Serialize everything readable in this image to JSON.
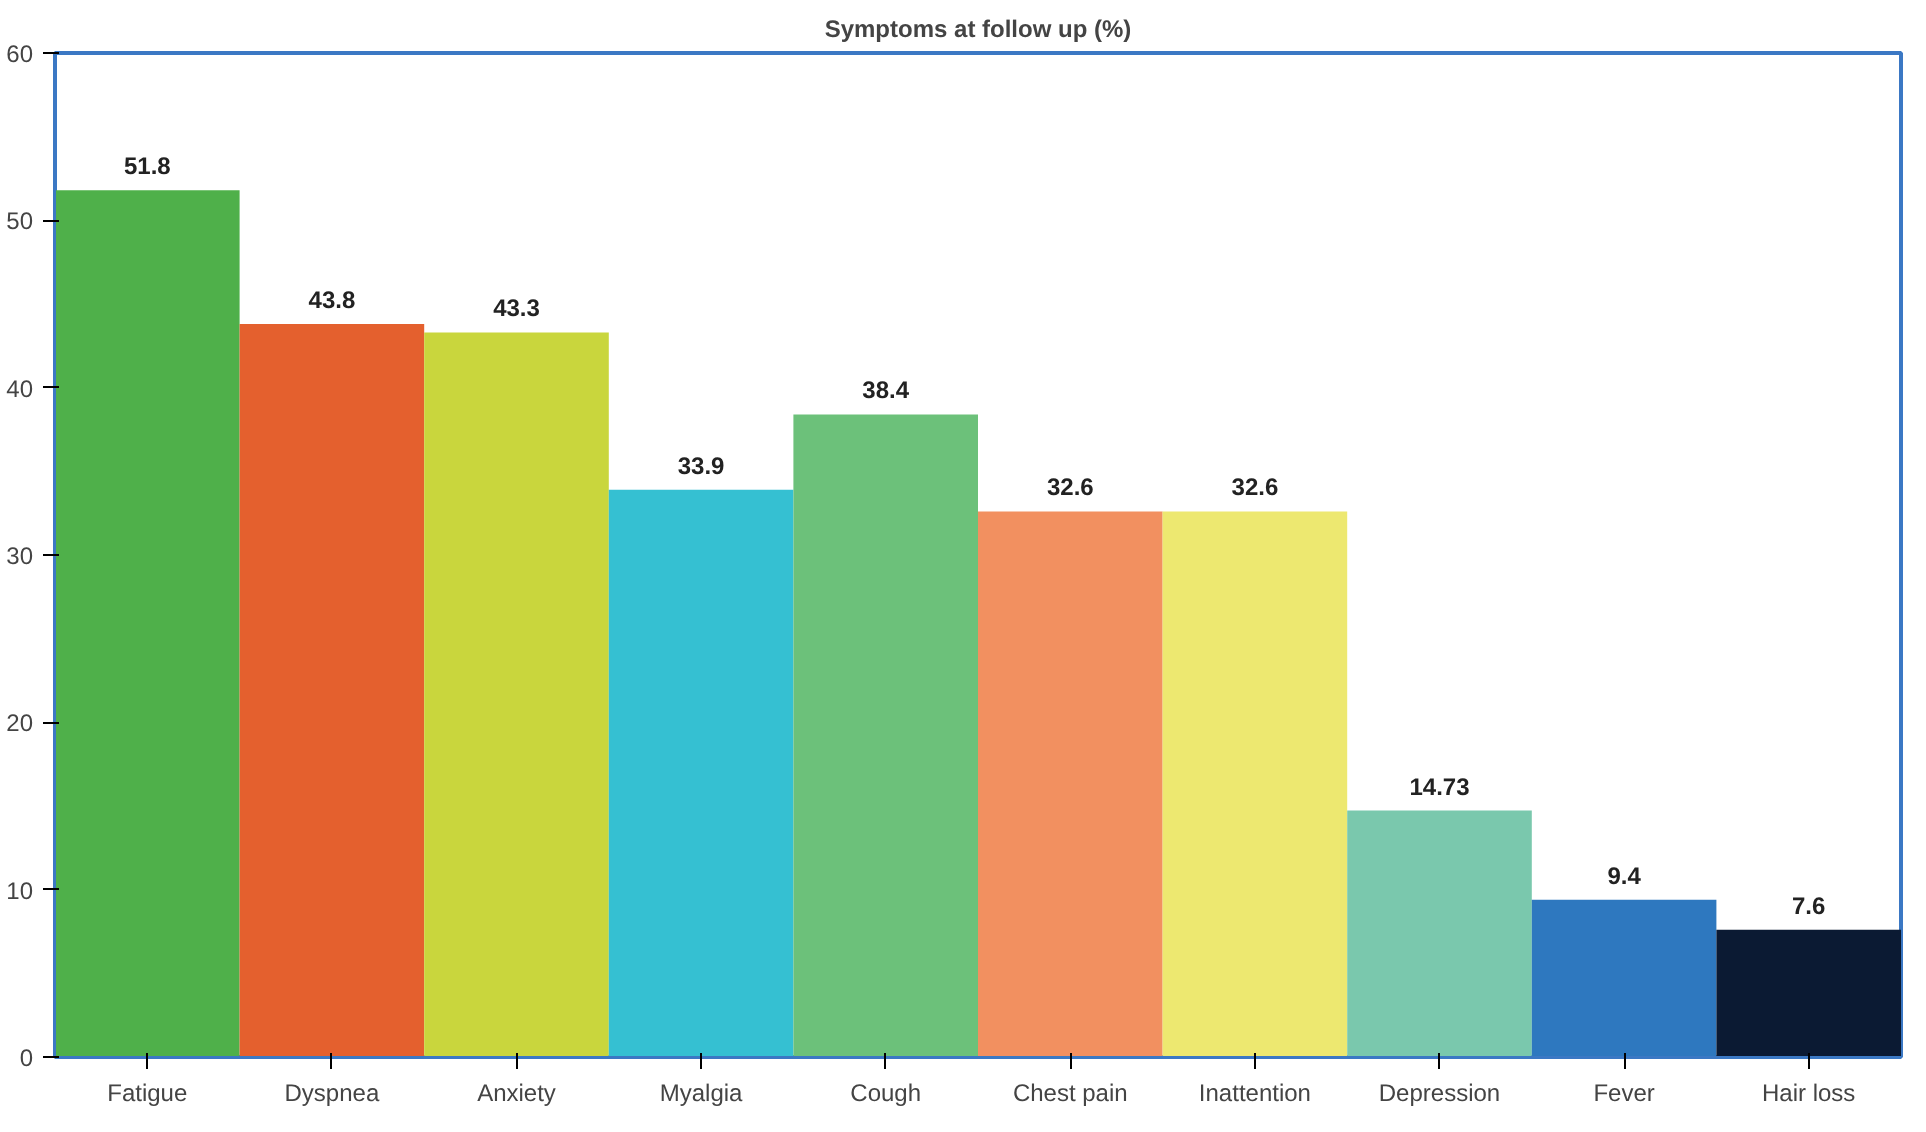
{
  "chart_data": {
    "type": "bar",
    "title": "Symptoms at follow up (%)",
    "categories": [
      "Fatigue",
      "Dyspnea",
      "Anxiety",
      "Myalgia",
      "Cough",
      "Chest pain",
      "Inattention",
      "Depression",
      "Fever",
      "Hair loss"
    ],
    "values": [
      51.8,
      43.8,
      43.3,
      33.9,
      38.4,
      32.6,
      32.6,
      14.73,
      9.4,
      7.6
    ],
    "colors": [
      "#4fb04a",
      "#e4602e",
      "#c9d63d",
      "#35c0d2",
      "#6cc17a",
      "#f29060",
      "#ede870",
      "#7ac8ad",
      "#2e78bf",
      "#0b1a33"
    ],
    "ylim": [
      0,
      60
    ],
    "yticks": [
      0,
      10,
      20,
      30,
      40,
      50,
      60
    ],
    "grid": false,
    "data_labels": true
  }
}
